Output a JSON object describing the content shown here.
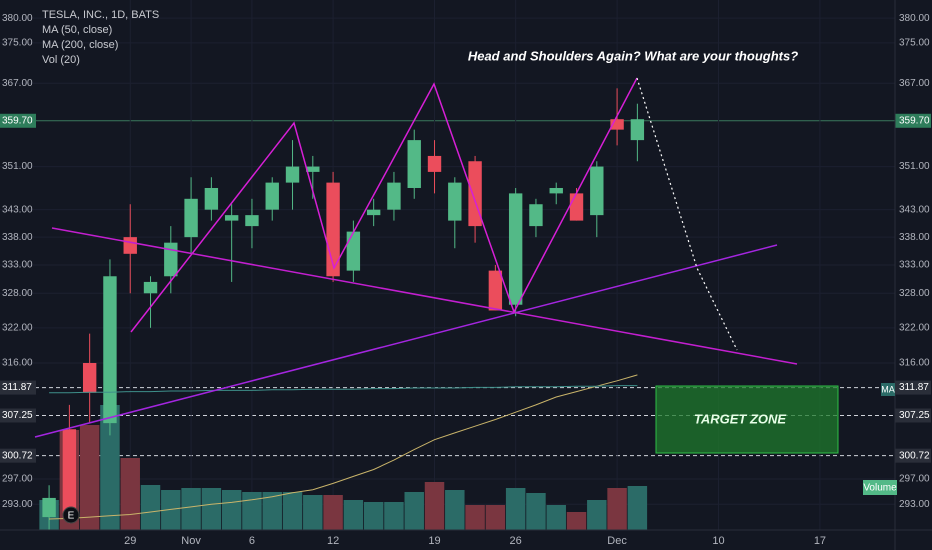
{
  "chart_data": {
    "type": "candlestick",
    "title": "TESLA, INC., 1D, BATS",
    "annotation": "Head and Shoulders Again? What are your thoughts?",
    "target_label": "TARGET ZONE",
    "volume_label": "Volume",
    "ma_badge": "MA",
    "event_marker": "E",
    "volume_name": "Vol (20)",
    "open": [
      291,
      305,
      316,
      306,
      338,
      328,
      331,
      338,
      343,
      341,
      340,
      343,
      348,
      350,
      348,
      332,
      342,
      343,
      347,
      353,
      341,
      352,
      332,
      326,
      340,
      346,
      346,
      342,
      360,
      356
    ],
    "high": [
      296,
      309,
      321,
      334,
      344,
      331,
      340,
      349,
      349,
      344,
      345,
      349,
      356,
      353,
      350,
      341,
      345,
      350,
      358,
      356,
      349,
      353,
      333,
      347,
      345,
      348,
      347,
      352,
      366,
      363
    ],
    "low": [
      289,
      290,
      306,
      304,
      328,
      322,
      328,
      335,
      341,
      330,
      336,
      341,
      343,
      345,
      330,
      330,
      340,
      341,
      345,
      346,
      336,
      337,
      325,
      324,
      338,
      344,
      341,
      338,
      355,
      352
    ],
    "close": [
      294,
      291,
      311,
      331,
      335,
      330,
      337,
      345,
      347,
      342,
      342,
      348,
      351,
      351,
      331,
      339,
      343,
      348,
      356,
      350,
      348,
      340,
      325,
      346,
      344,
      347,
      341,
      351,
      358,
      360
    ],
    "volume": [
      6,
      20,
      21,
      25,
      14.4,
      9,
      8,
      8.4,
      8.4,
      8,
      7.6,
      7.6,
      7.6,
      7,
      7,
      6,
      5.6,
      5.6,
      7.6,
      9.6,
      8,
      5,
      5,
      8.4,
      7.4,
      5,
      3.6,
      6,
      8.4,
      8.8
    ],
    "up_color": "#53b987",
    "down_color": "#eb4d5c",
    "volume_up_color": "#2b6b67",
    "volume_down_color": "#7a3640",
    "series": [
      {
        "name": "MA (50, close)",
        "color": "#c9b46a",
        "values": [
          290.7,
          290.8,
          291,
          291.2,
          291.4,
          291.8,
          292.2,
          292.6,
          293,
          293.3,
          293.7,
          294.2,
          294.8,
          295.3,
          296.3,
          297.4,
          298.5,
          300,
          301.7,
          303.3,
          304.4,
          305.5,
          306.6,
          307.8,
          309,
          310.3,
          311.2,
          312.1,
          313,
          314
        ]
      },
      {
        "name": "MA (200, close)",
        "color": "#3e8f8a",
        "values": [
          311.0,
          311.0,
          311.1,
          311.1,
          311.2,
          311.2,
          311.3,
          311.3,
          311.4,
          311.4,
          311.4,
          311.5,
          311.5,
          311.6,
          311.6,
          311.6,
          311.7,
          311.7,
          311.8,
          311.8,
          311.8,
          311.9,
          311.9,
          312.0,
          312.0,
          312.0,
          312.1,
          312.1,
          312.2,
          312.2
        ]
      }
    ],
    "log_scale": true,
    "grid": true,
    "ylim": [
      289,
      383.7
    ],
    "yticks": [
      {
        "value": 380,
        "label": "380.00"
      },
      {
        "value": 375,
        "label": "375.00"
      },
      {
        "value": 367,
        "label": "367.00"
      },
      {
        "value": 359.7,
        "label": "359.70",
        "style": "last"
      },
      {
        "value": 351,
        "label": "351.00"
      },
      {
        "value": 343,
        "label": "343.00"
      },
      {
        "value": 338,
        "label": "338.00"
      },
      {
        "value": 333,
        "label": "333.00"
      },
      {
        "value": 328,
        "label": "328.00"
      },
      {
        "value": 322,
        "label": "322.00"
      },
      {
        "value": 316,
        "label": "316.00"
      },
      {
        "value": 311.87,
        "label": "311.87",
        "style": "dashed"
      },
      {
        "value": 307.25,
        "label": "307.25",
        "style": "dashed"
      },
      {
        "value": 300.72,
        "label": "300.72",
        "style": "dashed"
      },
      {
        "value": 297,
        "label": "297.00"
      },
      {
        "value": 293,
        "label": "293.00"
      }
    ],
    "xlim": [
      -2.42,
      41.7
    ],
    "xticks": [
      {
        "value": 4,
        "label": "29"
      },
      {
        "value": 7,
        "label": "Nov"
      },
      {
        "value": 10,
        "label": "6"
      },
      {
        "value": 14,
        "label": "12"
      },
      {
        "value": 19,
        "label": "19"
      },
      {
        "value": 23,
        "label": "26"
      },
      {
        "value": 28,
        "label": "Dec"
      },
      {
        "value": 33,
        "label": "10"
      },
      {
        "value": 38,
        "label": "17"
      }
    ],
    "vlim": [
      0,
      30
    ]
  }
}
